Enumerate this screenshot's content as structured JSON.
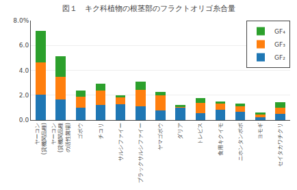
{
  "chart_data": {
    "type": "bar",
    "stacked": true,
    "title": "図１　キク科植物の根茎部のフラクトオリゴ糸合量",
    "categories": [
      "ヤーコン\n(貸機関品種)",
      "ヤーコン\n(貸機関品種\nの活性菌場)",
      "ゴボウ",
      "チコリ",
      "サルシファイー",
      "ブラックサルシファイー",
      "ヤマゴボウ",
      "ダリア",
      "トレビス",
      "食用キクイモ",
      "ニホンタンポポ",
      "ヨモギ",
      "セイタカワチクリ"
    ],
    "series": [
      {
        "name": "GF₂",
        "values": [
          2.05,
          1.65,
          1.0,
          1.2,
          1.25,
          1.1,
          0.8,
          1.0,
          0.55,
          0.85,
          0.65,
          0.2,
          0.5
        ]
      },
      {
        "name": "GF₃",
        "values": [
          2.6,
          1.8,
          0.85,
          1.15,
          0.55,
          1.35,
          1.2,
          0.1,
          0.85,
          0.45,
          0.45,
          0.25,
          0.5
        ]
      },
      {
        "name": "GF₄",
        "values": [
          2.5,
          1.7,
          0.5,
          0.55,
          0.2,
          0.65,
          0.25,
          0.1,
          0.35,
          0.2,
          0.25,
          0.15,
          0.45
        ]
      }
    ],
    "ylim": [
      0,
      8.0
    ],
    "yticks": [
      {
        "value": 0.0,
        "label": "0.0"
      },
      {
        "value": 2.0,
        "label": "2.0"
      },
      {
        "value": 4.0,
        "label": "4.0"
      },
      {
        "value": 6.0,
        "label": "6.0"
      },
      {
        "value": 8.0,
        "label": "8.0%"
      }
    ],
    "grid": true,
    "legend": "upper right"
  }
}
